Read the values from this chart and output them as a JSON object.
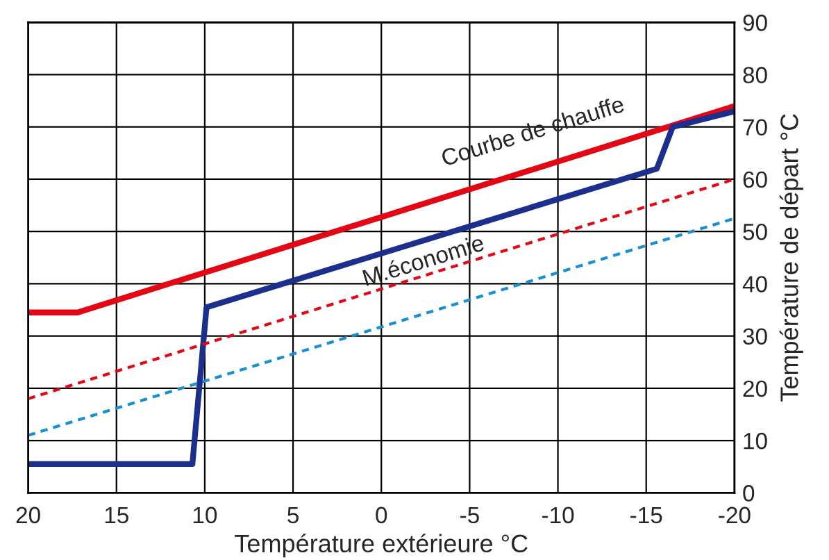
{
  "chart_data": {
    "type": "line",
    "xlabel": "Température extérieure °C",
    "ylabel": "Température de départ °C",
    "series": [
      {
        "color": "#e30613",
        "line_style": "solid",
        "x": [
          20,
          17.2,
          -20
        ],
        "values": [
          34.5,
          34.5,
          74
        ]
      },
      {
        "color": "#1d2f8c",
        "line_style": "solid",
        "x": [
          20,
          10.7,
          9.9,
          -15.6,
          -16.5,
          -20
        ],
        "values": [
          5.5,
          5.5,
          35.5,
          62,
          70,
          73
        ]
      },
      {
        "color": "#e30613",
        "line_style": "dotted",
        "x": [
          20,
          -20
        ],
        "values": [
          18,
          60
        ]
      },
      {
        "color": "#1a8fd0",
        "line_style": "dotted",
        "x": [
          20,
          -20
        ],
        "values": [
          11,
          52.5
        ]
      }
    ],
    "annotations": [
      "Courbe de chauffe",
      "M.économie"
    ],
    "xlim": [
      20,
      -20
    ],
    "xticks": [
      20,
      15,
      10,
      5,
      0,
      -5,
      -10,
      -15,
      -20
    ],
    "ylim": [
      0,
      90
    ],
    "yticks": [
      0,
      10,
      20,
      30,
      40,
      50,
      60,
      70,
      80,
      90
    ],
    "grid": true,
    "legend": false
  }
}
